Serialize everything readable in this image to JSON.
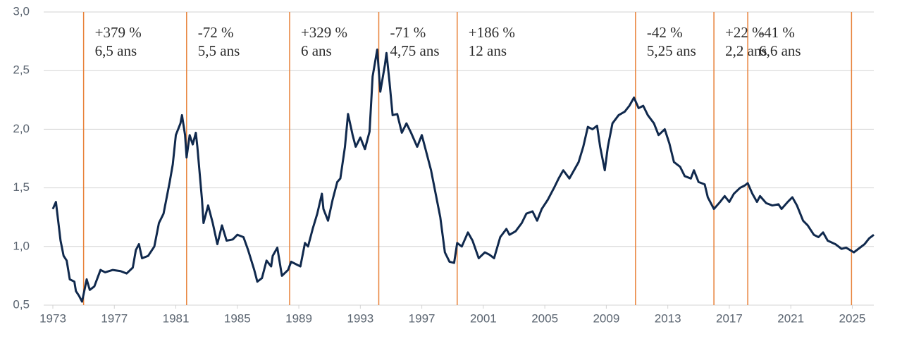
{
  "chart_data": {
    "type": "line",
    "x": [
      1973.0,
      1973.2,
      1973.5,
      1973.7,
      1973.9,
      1974.1,
      1974.4,
      1974.5,
      1974.7,
      1974.9,
      1975.2,
      1975.4,
      1975.7,
      1976.1,
      1976.4,
      1976.9,
      1977.4,
      1977.8,
      1978.2,
      1978.4,
      1978.6,
      1978.8,
      1979.2,
      1979.6,
      1979.9,
      1980.2,
      1980.6,
      1980.8,
      1981.0,
      1981.3,
      1981.4,
      1981.6,
      1981.7,
      1981.9,
      1982.1,
      1982.3,
      1982.4,
      1982.7,
      1982.8,
      1983.1,
      1983.4,
      1983.7,
      1984.0,
      1984.3,
      1984.7,
      1985.0,
      1985.4,
      1985.7,
      1986.1,
      1986.3,
      1986.6,
      1986.9,
      1987.2,
      1987.3,
      1987.6,
      1987.9,
      1988.3,
      1988.5,
      1988.8,
      1989.1,
      1989.4,
      1989.6,
      1989.9,
      1990.2,
      1990.5,
      1990.6,
      1990.9,
      1991.2,
      1991.5,
      1991.7,
      1992.0,
      1992.2,
      1992.5,
      1992.7,
      1993.0,
      1993.3,
      1993.6,
      1993.8,
      1994.1,
      1994.3,
      1994.6,
      1994.7,
      1994.9,
      1995.1,
      1995.4,
      1995.7,
      1996.0,
      1996.3,
      1996.7,
      1997.0,
      1997.3,
      1997.6,
      1997.9,
      1998.2,
      1998.5,
      1998.8,
      1999.1,
      1999.3,
      1999.6,
      2000.0,
      2000.3,
      2000.7,
      2001.1,
      2001.4,
      2001.7,
      2002.1,
      2002.5,
      2002.7,
      2003.1,
      2003.5,
      2003.8,
      2004.2,
      2004.5,
      2004.8,
      2005.2,
      2005.6,
      2005.9,
      2006.2,
      2006.6,
      2006.9,
      2007.2,
      2007.5,
      2007.8,
      2008.1,
      2008.4,
      2008.6,
      2008.9,
      2009.1,
      2009.4,
      2009.8,
      2010.2,
      2010.5,
      2010.8,
      2011.1,
      2011.4,
      2011.7,
      2012.1,
      2012.4,
      2012.8,
      2013.1,
      2013.4,
      2013.8,
      2014.1,
      2014.5,
      2014.7,
      2015.0,
      2015.4,
      2015.6,
      2016.0,
      2016.4,
      2016.7,
      2017.0,
      2017.3,
      2017.7,
      2018.0,
      2018.2,
      2018.5,
      2018.8,
      2019.0,
      2019.4,
      2019.8,
      2020.2,
      2020.4,
      2020.8,
      2021.1,
      2021.4,
      2021.8,
      2022.1,
      2022.5,
      2022.8,
      2023.1,
      2023.4,
      2023.9,
      2024.3,
      2024.6,
      2025.1,
      2025.4,
      2025.8,
      2026.1,
      2026.4
    ],
    "series": [
      {
        "color": "#10294d",
        "values": [
          1.32,
          1.38,
          1.05,
          0.92,
          0.88,
          0.72,
          0.7,
          0.62,
          0.58,
          0.53,
          0.72,
          0.63,
          0.66,
          0.8,
          0.78,
          0.8,
          0.79,
          0.77,
          0.82,
          0.97,
          1.02,
          0.9,
          0.92,
          1.0,
          1.2,
          1.28,
          1.55,
          1.7,
          1.95,
          2.05,
          2.12,
          1.95,
          1.76,
          1.95,
          1.87,
          1.97,
          1.85,
          1.4,
          1.2,
          1.35,
          1.2,
          1.02,
          1.18,
          1.05,
          1.06,
          1.1,
          1.08,
          0.97,
          0.8,
          0.7,
          0.73,
          0.88,
          0.83,
          0.92,
          0.99,
          0.75,
          0.8,
          0.87,
          0.85,
          0.83,
          1.03,
          1.0,
          1.15,
          1.28,
          1.45,
          1.32,
          1.22,
          1.4,
          1.55,
          1.58,
          1.85,
          2.13,
          1.95,
          1.85,
          1.93,
          1.83,
          1.98,
          2.45,
          2.68,
          2.32,
          2.55,
          2.65,
          2.4,
          2.12,
          2.13,
          1.97,
          2.05,
          1.97,
          1.85,
          1.95,
          1.8,
          1.65,
          1.45,
          1.25,
          0.95,
          0.87,
          0.86,
          1.03,
          1.0,
          1.12,
          1.05,
          0.9,
          0.95,
          0.93,
          0.9,
          1.08,
          1.15,
          1.1,
          1.13,
          1.2,
          1.28,
          1.3,
          1.22,
          1.32,
          1.4,
          1.5,
          1.58,
          1.65,
          1.58,
          1.65,
          1.72,
          1.85,
          2.02,
          2.0,
          2.03,
          1.85,
          1.65,
          1.85,
          2.05,
          2.12,
          2.15,
          2.2,
          2.27,
          2.18,
          2.2,
          2.12,
          2.05,
          1.95,
          2.0,
          1.88,
          1.72,
          1.68,
          1.6,
          1.58,
          1.65,
          1.55,
          1.53,
          1.42,
          1.32,
          1.38,
          1.43,
          1.38,
          1.45,
          1.5,
          1.52,
          1.54,
          1.45,
          1.38,
          1.43,
          1.37,
          1.35,
          1.36,
          1.32,
          1.38,
          1.42,
          1.35,
          1.22,
          1.18,
          1.1,
          1.08,
          1.12,
          1.05,
          1.02,
          0.98,
          0.99,
          0.95,
          0.98,
          1.02,
          1.07,
          1.1
        ]
      }
    ],
    "xlim": [
      1973,
      2026.4
    ],
    "xticks": [
      1973,
      1977,
      1981,
      1985,
      1989,
      1993,
      1997,
      2001,
      2005,
      2009,
      2013,
      2017,
      2021,
      2025
    ],
    "ylim": [
      0.5,
      3.0
    ],
    "yticks": [
      {
        "value": 0.5,
        "label": "0,5"
      },
      {
        "value": 1.0,
        "label": "1,0"
      },
      {
        "value": 1.5,
        "label": "1,5"
      },
      {
        "value": 2.0,
        "label": "2,0"
      },
      {
        "value": 2.5,
        "label": "2,5"
      },
      {
        "value": 3.0,
        "label": "3,0"
      }
    ],
    "grid": true,
    "annotation_color": "#e8823a",
    "annotations": [
      {
        "x": 1975.0,
        "text": [
          "+379 %",
          "6,5 ans"
        ]
      },
      {
        "x": 1981.7,
        "text": [
          "-72 %",
          "5,5 ans"
        ]
      },
      {
        "x": 1988.4,
        "text": [
          "+329 %",
          "6 ans"
        ]
      },
      {
        "x": 1994.2,
        "text": [
          "-71 %",
          "4,75 ans"
        ]
      },
      {
        "x": 1999.3,
        "text": [
          "+186 %",
          "12 ans"
        ]
      },
      {
        "x": 2010.9,
        "text": [
          "-42 %",
          "5,25 ans"
        ]
      },
      {
        "x": 2016.0,
        "text": [
          "+22 %",
          "2,2 ans"
        ]
      },
      {
        "x": 2018.2,
        "text": [
          "-41 %",
          "6,6 ans"
        ]
      },
      {
        "x": 2024.95,
        "text": []
      }
    ]
  }
}
